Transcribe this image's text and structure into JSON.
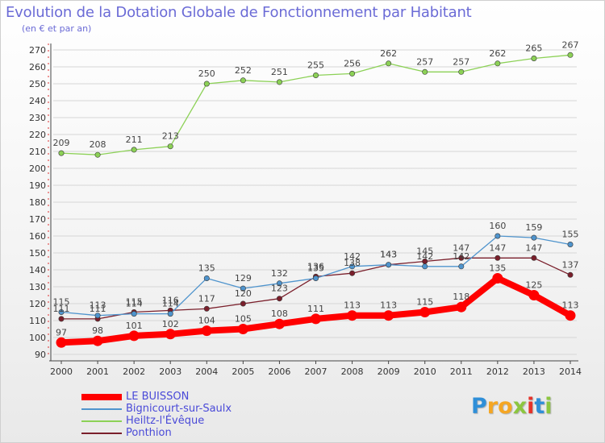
{
  "header": {
    "title": "Evolution de la Dotation Globale de Fonctionnement par Habitant",
    "subtitle": "(en € et par an)"
  },
  "logo": {
    "text": "Proxiti",
    "letters": [
      {
        "ch": "P",
        "color": "#2f8fd8"
      },
      {
        "ch": "r",
        "color": "#f5a623"
      },
      {
        "ch": "o",
        "color": "#f5a623"
      },
      {
        "ch": "x",
        "color": "#8cc63f"
      },
      {
        "ch": "i",
        "color": "#e5332a"
      },
      {
        "ch": "t",
        "color": "#2f8fd8"
      },
      {
        "ch": "i",
        "color": "#8cc63f"
      }
    ]
  },
  "colors": {
    "axis": "#444444",
    "grid": "#d6d6d6",
    "tick_text": "#333333",
    "value_label": "#444444",
    "legend_text": "#4a4ad8"
  },
  "chart_data": {
    "type": "line",
    "title": "Evolution de la Dotation Globale de Fonctionnement par Habitant",
    "subtitle": "(en € et par an)",
    "x": [
      "2000",
      "2001",
      "2002",
      "2003",
      "2004",
      "2005",
      "2006",
      "2007",
      "2008",
      "2009",
      "2010",
      "2011",
      "2012",
      "2013",
      "2014"
    ],
    "ylim": [
      90,
      270
    ],
    "yticks": [
      90,
      100,
      110,
      120,
      130,
      140,
      150,
      160,
      170,
      180,
      190,
      200,
      210,
      220,
      230,
      240,
      250,
      260,
      270
    ],
    "grid": true,
    "legend_position": "bottom-left",
    "series": [
      {
        "name": "LE BUISSON",
        "color": "#ff0000",
        "emphasis": true,
        "values": [
          97,
          98,
          101,
          102,
          104,
          105,
          108,
          111,
          113,
          113,
          115,
          118,
          135,
          125,
          113
        ]
      },
      {
        "name": "Bignicourt-sur-Saulx",
        "color": "#4f94cd",
        "values": [
          115,
          113,
          114,
          114,
          135,
          129,
          132,
          135,
          142,
          143,
          142,
          142,
          160,
          159,
          155
        ]
      },
      {
        "name": "Heiltz-l'Évêque",
        "color": "#8cd156",
        "values": [
          209,
          208,
          211,
          213,
          250,
          252,
          251,
          255,
          256,
          262,
          257,
          257,
          262,
          265,
          267
        ]
      },
      {
        "name": "Ponthion",
        "color": "#7a1f2b",
        "values": [
          111,
          111,
          115,
          116,
          117,
          120,
          123,
          136,
          138,
          143,
          145,
          147,
          147,
          147,
          137
        ]
      }
    ]
  }
}
